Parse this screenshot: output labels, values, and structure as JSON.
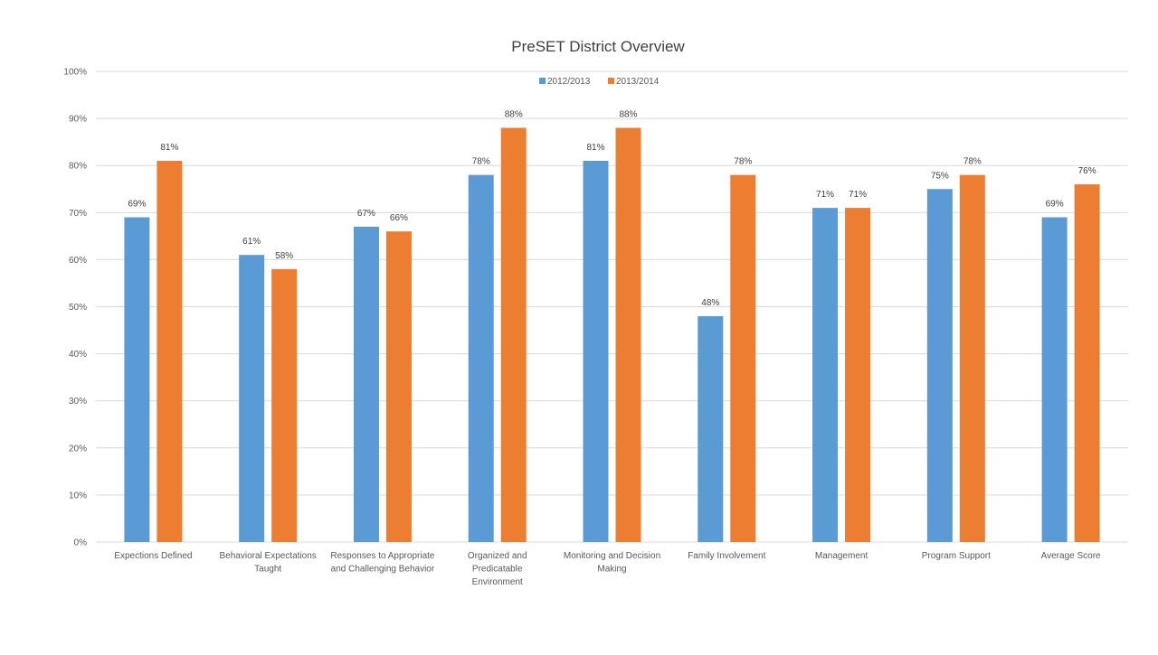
{
  "chart_data": {
    "type": "bar",
    "title": "PreSET District Overview",
    "xlabel": "",
    "ylabel": "",
    "ylim": [
      0,
      100
    ],
    "yticks": [
      "0%",
      "10%",
      "20%",
      "30%",
      "40%",
      "50%",
      "60%",
      "70%",
      "80%",
      "90%",
      "100%"
    ],
    "grid": true,
    "legend_position": "top-center",
    "categories": [
      [
        "Expections Defined"
      ],
      [
        "Behavioral Expectations",
        "Taught"
      ],
      [
        "Responses to Appropriate",
        "and Challenging Behavior"
      ],
      [
        "Organized and",
        "Predicatable",
        "Environment"
      ],
      [
        "Monitoring and Decision",
        "Making"
      ],
      [
        "Family Involvement"
      ],
      [
        "Management"
      ],
      [
        "Program Support"
      ],
      [
        "Average Score"
      ]
    ],
    "series": [
      {
        "name": "2012/2013",
        "color": "#5b9bd5",
        "values": [
          69,
          61,
          67,
          78,
          81,
          48,
          71,
          75,
          69
        ],
        "labels": [
          "69%",
          "61%",
          "67%",
          "78%",
          "81%",
          "48%",
          "71%",
          "75%",
          "69%"
        ]
      },
      {
        "name": "2013/2014",
        "color": "#ed7d31",
        "values": [
          81,
          58,
          66,
          88,
          88,
          78,
          71,
          78,
          76
        ],
        "labels": [
          "81%",
          "58%",
          "66%",
          "88%",
          "88%",
          "78%",
          "71%",
          "78%",
          "76%"
        ]
      }
    ]
  }
}
